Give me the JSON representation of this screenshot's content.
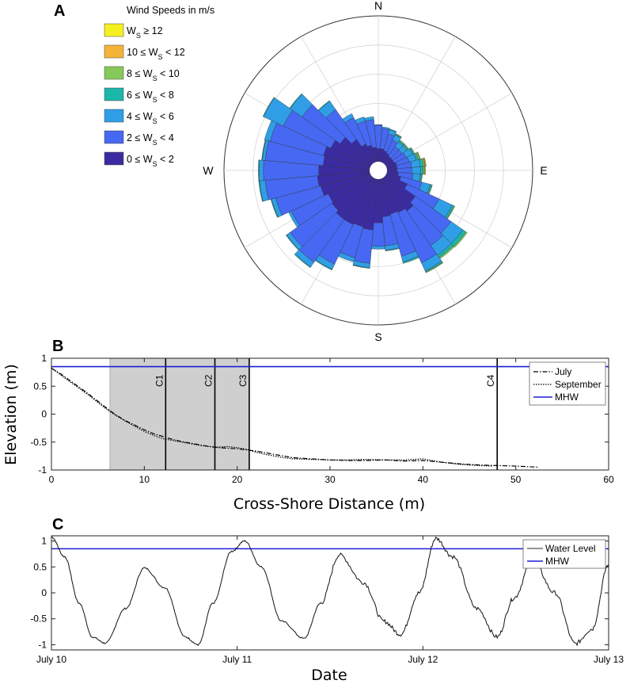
{
  "chart_data": [
    {
      "panel": "A",
      "type": "polar-bar",
      "title": "Wind Speeds in m/s",
      "directions": [
        "N",
        "E",
        "S",
        "W"
      ],
      "legend": [
        {
          "label": "W_S ≥ 12",
          "color": "#f5f020"
        },
        {
          "label": "10 ≤ W_S < 12",
          "color": "#f6b33a"
        },
        {
          "label": "8 ≤ W_S < 10",
          "color": "#86c95a"
        },
        {
          "label": "6 ≤ W_S < 8",
          "color": "#1cb7ab"
        },
        {
          "label": "4 ≤ W_S < 6",
          "color": "#2f9ee6"
        },
        {
          "label": "2 ≤ W_S < 4",
          "color": "#4668f2"
        },
        {
          "label": "0 ≤ W_S < 2",
          "color": "#3a2ba0"
        }
      ],
      "sector_width_deg": 10,
      "radial_max": 10,
      "sectors": [
        {
          "dir": 0,
          "v": [
            0.9,
            1.6,
            0.05,
            0,
            0,
            0,
            0
          ]
        },
        {
          "dir": 10,
          "v": [
            0.9,
            1.4,
            0.1,
            0,
            0,
            0,
            0
          ]
        },
        {
          "dir": 20,
          "v": [
            0.8,
            1.2,
            0.3,
            0.05,
            0,
            0,
            0
          ]
        },
        {
          "dir": 30,
          "v": [
            0.7,
            1.0,
            0.4,
            0.05,
            0.05,
            0,
            0
          ]
        },
        {
          "dir": 40,
          "v": [
            0.6,
            0.8,
            0.4,
            0.1,
            0.05,
            0,
            0
          ]
        },
        {
          "dir": 50,
          "v": [
            0.6,
            0.8,
            0.4,
            0.1,
            0.05,
            0,
            0
          ]
        },
        {
          "dir": 60,
          "v": [
            0.6,
            0.9,
            0.5,
            0.1,
            0.05,
            0,
            0
          ]
        },
        {
          "dir": 70,
          "v": [
            0.7,
            0.9,
            0.5,
            0.15,
            0.1,
            0.05,
            0
          ]
        },
        {
          "dir": 80,
          "v": [
            0.7,
            1.0,
            0.6,
            0.2,
            0.1,
            0.05,
            0.05
          ]
        },
        {
          "dir": 90,
          "v": [
            0.7,
            1.0,
            0.6,
            0.2,
            0.1,
            0.05,
            0
          ]
        },
        {
          "dir": 100,
          "v": [
            0.8,
            1.0,
            0.5,
            0.1,
            0.05,
            0,
            0
          ]
        },
        {
          "dir": 110,
          "v": [
            1.0,
            1.5,
            0.6,
            0.1,
            0.05,
            0,
            0
          ]
        },
        {
          "dir": 120,
          "v": [
            1.6,
            2.4,
            1.0,
            0.15,
            0.05,
            0,
            0
          ]
        },
        {
          "dir": 130,
          "v": [
            2.5,
            3.0,
            1.0,
            0.25,
            0.1,
            0,
            0
          ]
        },
        {
          "dir": 140,
          "v": [
            2.8,
            2.9,
            0.8,
            0.2,
            0.1,
            0,
            0
          ]
        },
        {
          "dir": 150,
          "v": [
            2.6,
            3.8,
            0.6,
            0.1,
            0.05,
            0,
            0
          ]
        },
        {
          "dir": 160,
          "v": [
            2.5,
            3.0,
            0.4,
            0.1,
            0,
            0,
            0
          ]
        },
        {
          "dir": 170,
          "v": [
            2.6,
            2.0,
            0.3,
            0.05,
            0,
            0,
            0
          ]
        },
        {
          "dir": 180,
          "v": [
            3.0,
            1.6,
            0.2,
            0,
            0,
            0,
            0
          ]
        },
        {
          "dir": 190,
          "v": [
            3.5,
            2.3,
            0.3,
            0.05,
            0,
            0,
            0
          ]
        },
        {
          "dir": 200,
          "v": [
            3.4,
            2.2,
            0.3,
            0,
            0,
            0,
            0
          ]
        },
        {
          "dir": 210,
          "v": [
            3.5,
            3.0,
            0.4,
            0.05,
            0,
            0,
            0
          ]
        },
        {
          "dir": 220,
          "v": [
            3.5,
            3.6,
            0.4,
            0.05,
            0,
            0,
            0
          ]
        },
        {
          "dir": 230,
          "v": [
            3.3,
            3.5,
            0.3,
            0.05,
            0,
            0,
            0
          ]
        },
        {
          "dir": 240,
          "v": [
            3.2,
            2.8,
            0.2,
            0,
            0,
            0,
            0
          ]
        },
        {
          "dir": 250,
          "v": [
            3.5,
            3.2,
            0.3,
            0.05,
            0,
            0,
            0
          ]
        },
        {
          "dir": 260,
          "v": [
            3.6,
            3.6,
            0.4,
            0.05,
            0,
            0,
            0
          ]
        },
        {
          "dir": 270,
          "v": [
            3.5,
            3.8,
            0.3,
            0.05,
            0,
            0,
            0
          ]
        },
        {
          "dir": 280,
          "v": [
            3.2,
            4.0,
            0.2,
            0.05,
            0,
            0,
            0
          ]
        },
        {
          "dir": 290,
          "v": [
            3.3,
            3.8,
            0.4,
            0,
            0,
            0,
            0
          ]
        },
        {
          "dir": 300,
          "v": [
            3.0,
            3.6,
            1.5,
            0.05,
            0,
            0,
            0
          ]
        },
        {
          "dir": 310,
          "v": [
            2.6,
            3.2,
            1.0,
            0.05,
            0,
            0,
            0
          ]
        },
        {
          "dir": 320,
          "v": [
            2.0,
            2.5,
            0.7,
            0.05,
            0,
            0,
            0
          ]
        },
        {
          "dir": 330,
          "v": [
            1.4,
            2.0,
            0.3,
            0,
            0,
            0,
            0
          ]
        },
        {
          "dir": 340,
          "v": [
            1.2,
            1.7,
            0.3,
            0,
            0,
            0,
            0
          ]
        },
        {
          "dir": 350,
          "v": [
            1.0,
            1.9,
            0.2,
            0,
            0,
            0,
            0
          ]
        }
      ]
    },
    {
      "panel": "B",
      "type": "line",
      "xlabel": "Cross-Shore Distance (m)",
      "ylabel": "Elevation (m)",
      "xlim": [
        0,
        60
      ],
      "ylim": [
        -1,
        1
      ],
      "xticks": [
        0,
        10,
        20,
        30,
        40,
        50,
        60
      ],
      "yticks": [
        -1,
        -0.5,
        0,
        0.5,
        1
      ],
      "xtick_labels": [
        "0",
        "10",
        "20",
        "30",
        "40",
        "50",
        "60"
      ],
      "ytick_labels": [
        "-1",
        "-0.5",
        "0",
        "0.5",
        "1"
      ],
      "shaded_region": {
        "x0": 6.3,
        "x1": 21.3
      },
      "vertical_lines": [
        {
          "label": "C1",
          "x": 12.3
        },
        {
          "label": "C2",
          "x": 17.6
        },
        {
          "label": "C3",
          "x": 21.3
        },
        {
          "label": "C4",
          "x": 48
        }
      ],
      "mhw": 0.85,
      "legend": [
        "July",
        "September",
        "MHW"
      ],
      "series": [
        {
          "name": "July",
          "style": "dashdot",
          "x": [
            0,
            1,
            2,
            3,
            4,
            5,
            6,
            7,
            8,
            9,
            10,
            11,
            12,
            13,
            14,
            15,
            16,
            17,
            18,
            19,
            20,
            21,
            22,
            23,
            24,
            25,
            26,
            28,
            30,
            32,
            34,
            36,
            38,
            40,
            42,
            44,
            46,
            48,
            50,
            52.5
          ],
          "y": [
            0.82,
            0.72,
            0.6,
            0.48,
            0.36,
            0.23,
            0.1,
            -0.02,
            -0.12,
            -0.2,
            -0.28,
            -0.35,
            -0.4,
            -0.45,
            -0.49,
            -0.52,
            -0.55,
            -0.58,
            -0.6,
            -0.61,
            -0.62,
            -0.64,
            -0.66,
            -0.69,
            -0.72,
            -0.75,
            -0.78,
            -0.8,
            -0.82,
            -0.83,
            -0.83,
            -0.82,
            -0.84,
            -0.83,
            -0.86,
            -0.89,
            -0.91,
            -0.92,
            -0.93,
            -0.95
          ]
        },
        {
          "name": "September",
          "style": "dotted",
          "x": [
            0,
            1,
            2,
            3,
            4,
            5,
            6,
            7,
            8,
            9,
            10,
            11,
            12,
            13,
            14,
            15,
            16,
            17,
            18,
            19,
            20,
            21,
            22,
            23,
            24,
            25,
            26,
            28,
            30,
            32,
            34,
            36,
            38,
            40,
            42,
            44,
            46,
            47.5
          ],
          "y": [
            0.83,
            0.7,
            0.58,
            0.46,
            0.34,
            0.21,
            0.08,
            -0.03,
            -0.13,
            -0.22,
            -0.31,
            -0.38,
            -0.44,
            -0.47,
            -0.5,
            -0.53,
            -0.56,
            -0.58,
            -0.59,
            -0.58,
            -0.6,
            -0.63,
            -0.68,
            -0.72,
            -0.75,
            -0.78,
            -0.8,
            -0.81,
            -0.82,
            -0.82,
            -0.81,
            -0.82,
            -0.82,
            -0.8,
            -0.86,
            -0.9,
            -0.92,
            -0.93
          ]
        }
      ]
    },
    {
      "panel": "C",
      "type": "line",
      "xlabel": "Date",
      "xlim": [
        0,
        3
      ],
      "ylim": [
        -1.1,
        1.1
      ],
      "xticks": [
        0,
        1,
        2,
        3
      ],
      "xtick_labels": [
        "July 10",
        "July 11",
        "July 12",
        "July 13"
      ],
      "yticks": [
        -1,
        -0.5,
        0,
        0.5,
        1
      ],
      "ytick_labels": [
        "-1",
        "-0.5",
        "0",
        "0.5",
        "1"
      ],
      "mhw": 0.85,
      "legend": [
        "Water Level",
        "MHW"
      ],
      "series": [
        {
          "name": "Water Level",
          "x": [
            0,
            0.07,
            0.15,
            0.22,
            0.29,
            0.4,
            0.5,
            0.61,
            0.72,
            0.79,
            0.87,
            0.97,
            1.04,
            1.13,
            1.24,
            1.36,
            1.45,
            1.55,
            1.68,
            1.79,
            1.88,
            1.98,
            2.07,
            2.16,
            2.29,
            2.4,
            2.49,
            2.59,
            2.71,
            2.82,
            2.91,
            3.0
          ],
          "y": [
            1.08,
            0.7,
            -0.2,
            -0.85,
            -0.97,
            -0.3,
            0.48,
            0.1,
            -0.85,
            -1.0,
            -0.2,
            0.8,
            1.0,
            0.5,
            -0.55,
            -0.88,
            -0.2,
            0.73,
            0.2,
            -0.55,
            -0.8,
            0.0,
            1.05,
            0.7,
            -0.3,
            -0.85,
            -0.1,
            0.62,
            0.0,
            -0.98,
            -0.7,
            0.55
          ]
        }
      ]
    }
  ]
}
